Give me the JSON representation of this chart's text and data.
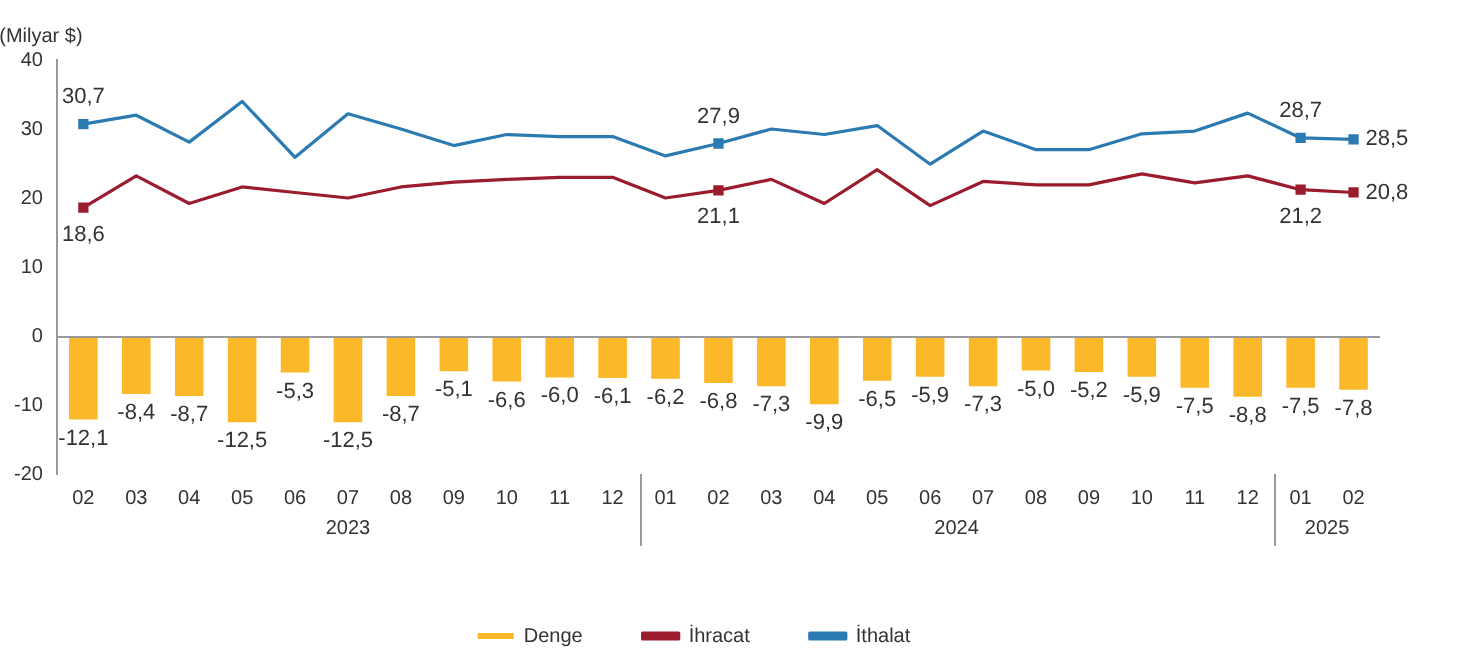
{
  "chart_data": {
    "type": "bar",
    "ylabel": "(Milyar $)",
    "categories": [
      "02",
      "03",
      "04",
      "05",
      "06",
      "07",
      "08",
      "09",
      "10",
      "11",
      "12",
      "01",
      "02",
      "03",
      "04",
      "05",
      "06",
      "07",
      "08",
      "09",
      "10",
      "11",
      "12",
      "01",
      "02"
    ],
    "series": [
      {
        "name": "Denge",
        "color": "#fbb829",
        "values": [
          -12.1,
          -8.4,
          -8.7,
          -12.5,
          -5.3,
          -12.5,
          -8.7,
          -5.1,
          -6.6,
          -6.0,
          -6.1,
          -6.2,
          -6.8,
          -7.3,
          -9.9,
          -6.5,
          -5.9,
          -7.3,
          -5.0,
          -5.2,
          -5.9,
          -7.5,
          -8.8,
          -7.5,
          -7.8
        ],
        "value_labels": [
          "-12,1",
          "-8,4",
          "-8,7",
          "-12,5",
          "-5,3",
          "-12,5",
          "-8,7",
          "-5,1",
          "-6,6",
          "-6,0",
          "-6,1",
          "-6,2",
          "-6,8",
          "-7,3",
          "-9,9",
          "-6,5",
          "-5,9",
          "-7,3",
          "-5,0",
          "-5,2",
          "-5,9",
          "-7,5",
          "-8,8",
          "-7,5",
          "-7,8"
        ]
      },
      {
        "name": "İhracat",
        "type": "line",
        "color": "#9b1c2c",
        "values": [
          18.6,
          23.2,
          19.2,
          21.6,
          20.8,
          20.0,
          21.6,
          22.3,
          22.7,
          23.0,
          23.0,
          20.0,
          21.1,
          22.7,
          19.2,
          24.1,
          18.9,
          22.4,
          21.9,
          21.9,
          23.5,
          22.2,
          23.2,
          21.2,
          20.8
        ],
        "value_labels": [
          "18,6",
          null,
          null,
          null,
          null,
          null,
          null,
          null,
          null,
          null,
          null,
          null,
          "21,1",
          null,
          null,
          null,
          null,
          null,
          null,
          null,
          null,
          null,
          null,
          "21,2",
          "20,8"
        ]
      },
      {
        "name": "İthalat",
        "type": "line",
        "color": "#2b7bb2",
        "values": [
          30.7,
          32.0,
          28.1,
          34.0,
          25.9,
          32.2,
          30.0,
          27.6,
          29.2,
          28.9,
          28.9,
          26.1,
          27.9,
          30.0,
          29.2,
          30.5,
          24.9,
          29.7,
          27.0,
          27.0,
          29.3,
          29.7,
          32.3,
          28.7,
          28.5
        ],
        "value_labels": [
          "30,7",
          null,
          null,
          null,
          null,
          null,
          null,
          null,
          null,
          null,
          null,
          null,
          "27,9",
          null,
          null,
          null,
          null,
          null,
          null,
          null,
          null,
          null,
          null,
          "28,7",
          "28,5"
        ]
      }
    ],
    "annotations": [
      "2023",
      "2024",
      "2025"
    ],
    "ylim": [
      -20,
      40
    ],
    "yticks": [
      -20,
      -10,
      0,
      10,
      20,
      30,
      40
    ],
    "legend": "bottom",
    "line_style": "solid"
  }
}
